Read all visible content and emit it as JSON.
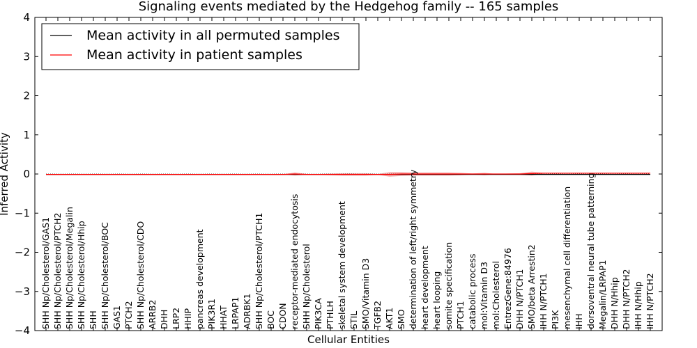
{
  "chart_data": {
    "type": "line",
    "title": "Signaling events mediated by the Hedgehog family -- 165 samples",
    "xlabel": "Cellular Entities",
    "ylabel": "Inferred Activity",
    "ylim": [
      -4,
      4
    ],
    "yticks": [
      4,
      3,
      2,
      1,
      0,
      -1,
      -2,
      -3,
      -4
    ],
    "yticklabels": [
      "4",
      "3",
      "2",
      "1",
      "0",
      "−1",
      "−2",
      "−3",
      "−4"
    ],
    "grid": false,
    "legend_position": "top-left",
    "categories": [
      "SHH Np/Cholesterol/GAS1",
      "SHH Np/Cholesterol/PTCH2",
      "SHH Np/Cholesterol/Megalin",
      "SHH Np/Cholesterol/Hhip",
      "SHH",
      "SHH Np/Cholesterol/BOC",
      "GAS1",
      "PTCH2",
      "SHH Np/Cholesterol/CDO",
      "ARRB2",
      "DHH",
      "LRP2",
      "HHIP",
      "pancreas development",
      "PIK3R1",
      "HHAT",
      "LRPAP1",
      "ADRBK1",
      "SHH Np/Cholesterol/PTCH1",
      "BOC",
      "CDON",
      "receptor-mediated endocytosis",
      "SHH Np/Cholesterol",
      "PIK3CA",
      "PTHLH",
      "skeletal system development",
      "STIL",
      "SMO/Vitamin D3",
      "TGFB2",
      "AKT1",
      "SMO",
      "determination of left/right symmetry",
      "heart development",
      "heart looping",
      "somite specification",
      "PTCH1",
      "catabolic process",
      "mol:Vitamin D3",
      "mol:Cholesterol",
      "EntrezGene:84976",
      "DHH N/PTCH1",
      "SMO/beta Arrestin2",
      "IHH N/PTCH1",
      "PI3K",
      "mesenchymal cell differentiation",
      "IHH",
      "dorsoventral neural tube patterning",
      "Megalin/LRPAP1",
      "DHH N/Hhip",
      "DHH N/PTCH2",
      "IHH N/Hhip",
      "IHH N/PTCH2"
    ],
    "series": [
      {
        "name": "Mean activity in all permuted samples",
        "color": "#000000",
        "values": [
          -0.01,
          -0.01,
          -0.01,
          -0.01,
          -0.01,
          -0.01,
          -0.01,
          -0.01,
          -0.01,
          -0.01,
          -0.01,
          -0.01,
          -0.01,
          -0.01,
          -0.01,
          -0.01,
          -0.01,
          -0.01,
          -0.01,
          -0.01,
          -0.01,
          -0.01,
          -0.01,
          -0.01,
          -0.01,
          -0.01,
          -0.01,
          -0.01,
          -0.01,
          -0.01,
          -0.01,
          -0.01,
          -0.01,
          -0.01,
          -0.01,
          -0.01,
          -0.01,
          -0.01,
          -0.01,
          -0.01,
          -0.01,
          -0.01,
          -0.01,
          -0.01,
          -0.01,
          -0.01,
          -0.01,
          -0.01,
          -0.01,
          -0.01,
          -0.01,
          -0.01
        ]
      },
      {
        "name": "Mean activity in patient samples",
        "color": "#ff0000",
        "values": [
          -0.01,
          -0.01,
          -0.01,
          -0.01,
          -0.01,
          -0.01,
          -0.01,
          -0.01,
          -0.01,
          -0.01,
          -0.01,
          -0.01,
          -0.01,
          -0.01,
          -0.01,
          -0.01,
          -0.01,
          -0.01,
          -0.01,
          -0.01,
          -0.01,
          0.0,
          -0.01,
          -0.01,
          -0.01,
          -0.01,
          -0.01,
          -0.01,
          -0.01,
          -0.01,
          0.0,
          0.0,
          0.0,
          0.0,
          0.0,
          0.0,
          0.0,
          0.0,
          0.0,
          0.0,
          0.0,
          0.01,
          0.02,
          0.02,
          0.02,
          0.02,
          0.02,
          0.02,
          0.02,
          0.02,
          0.02,
          0.02
        ],
        "band_spread": [
          0.0,
          0.0,
          0.0,
          0.0,
          0.0,
          0.0,
          0.0,
          0.0,
          0.0,
          0.0,
          0.0,
          0.0,
          0.0,
          0.0,
          0.0,
          0.0,
          0.0,
          0.0,
          0.0,
          0.0,
          0.0,
          0.04,
          0.01,
          0.01,
          0.02,
          0.03,
          0.03,
          0.03,
          0.01,
          0.06,
          0.05,
          0.04,
          0.04,
          0.04,
          0.04,
          0.03,
          0.01,
          0.03,
          0.0,
          0.01,
          0.02,
          0.05,
          0.01,
          0.0,
          0.0,
          0.0,
          0.0,
          0.0,
          0.0,
          0.0,
          0.0,
          0.0
        ],
        "band_color": "#f08080"
      }
    ]
  }
}
